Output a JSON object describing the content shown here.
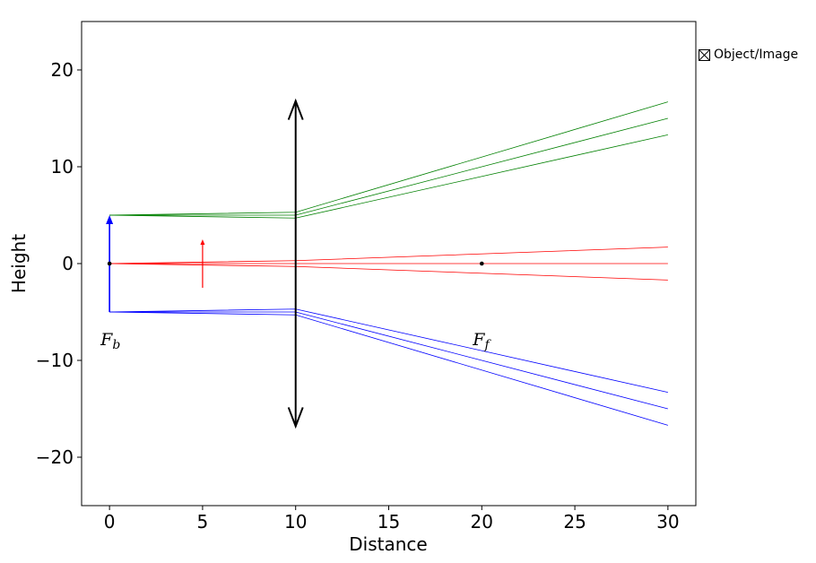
{
  "chart_data": {
    "type": "line",
    "title": "",
    "xlabel": "Distance",
    "ylabel": "Height",
    "xlim": [
      -1.5,
      31.5
    ],
    "ylim": [
      -25,
      25
    ],
    "xticks": [
      0,
      5,
      10,
      15,
      20,
      25,
      30
    ],
    "yticks": [
      -20,
      -10,
      0,
      10,
      20
    ],
    "xtick_labels": [
      "0",
      "5",
      "10",
      "15",
      "20",
      "25",
      "30"
    ],
    "ytick_labels": [
      "−20",
      "−10",
      "0",
      "10",
      "20"
    ],
    "grid": false,
    "legend": {
      "position": "right",
      "entries": [
        "Object/Image"
      ]
    },
    "lens": {
      "x": 10,
      "y_top": 16.8,
      "y_bottom": -16.8,
      "color": "#000000"
    },
    "object_arrow": {
      "x": 0,
      "y_from": -5,
      "y_to": 5,
      "color": "#0000ff"
    },
    "image_arrow": {
      "x": 5,
      "y_from": -2.5,
      "y_to": 2.5,
      "color": "#ff0000"
    },
    "focal_points": [
      {
        "name": "F_b",
        "main": "F",
        "sub": "b",
        "x": 0,
        "y": 0
      },
      {
        "name": "F_f",
        "main": "F",
        "sub": "f",
        "x": 20,
        "y": 0
      }
    ],
    "series": [
      {
        "color": "#008000",
        "x": [
          0,
          10,
          30
        ],
        "y": [
          5,
          5.3,
          16.7
        ]
      },
      {
        "color": "#008000",
        "x": [
          0,
          10,
          30
        ],
        "y": [
          5,
          5.0,
          15.0
        ]
      },
      {
        "color": "#008000",
        "x": [
          0,
          10,
          30
        ],
        "y": [
          5,
          4.7,
          13.3
        ]
      },
      {
        "color": "#ff0000",
        "x": [
          0,
          10,
          30
        ],
        "y": [
          0,
          0.3,
          1.7
        ]
      },
      {
        "color": "#ff0000",
        "x": [
          0,
          10,
          30
        ],
        "y": [
          0,
          0,
          0
        ]
      },
      {
        "color": "#ff0000",
        "x": [
          0,
          10,
          30
        ],
        "y": [
          0,
          -0.3,
          -1.7
        ]
      },
      {
        "color": "#0000ff",
        "x": [
          0,
          10,
          30
        ],
        "y": [
          -5,
          -4.7,
          -13.3
        ]
      },
      {
        "color": "#0000ff",
        "x": [
          0,
          10,
          30
        ],
        "y": [
          -5,
          -5.0,
          -15.0
        ]
      },
      {
        "color": "#0000ff",
        "x": [
          0,
          10,
          30
        ],
        "y": [
          -5,
          -5.3,
          -16.7
        ]
      }
    ]
  }
}
